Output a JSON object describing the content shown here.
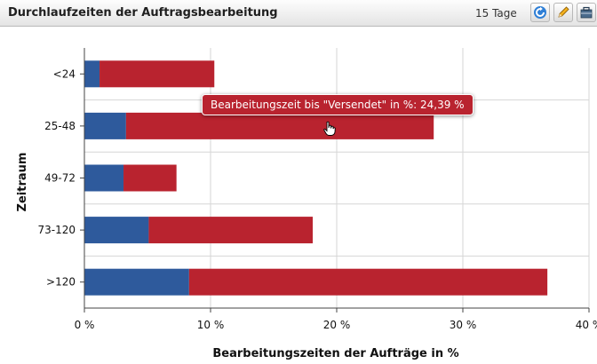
{
  "header": {
    "title": "Durchlaufzeiten der Auftragsbearbeitung",
    "period": "15 Tage",
    "buttons": [
      {
        "name": "refresh-button",
        "icon": "refresh-icon"
      },
      {
        "name": "edit-button",
        "icon": "pencil-icon"
      },
      {
        "name": "options-button",
        "icon": "toolbox-icon"
      }
    ]
  },
  "tooltip": {
    "text": "Bearbeitungszeit bis \"Versendet\" in %: 24,39 %"
  },
  "colors": {
    "series_blue": "#2e5a9c",
    "series_red": "#b9232f",
    "grid": "#d6d6d6",
    "header_text": "#1f1f1f"
  },
  "chart_data": {
    "type": "bar",
    "orientation": "horizontal",
    "stacked": true,
    "categories": [
      "<24",
      "25-48",
      "49-72",
      "73-120",
      ">120"
    ],
    "series": [
      {
        "values": [
          1.2,
          3.3,
          3.1,
          5.1,
          8.3
        ],
        "color": "#2e5a9c"
      },
      {
        "name": "Bearbeitungszeit bis \"Versendet\"",
        "values": [
          9.1,
          24.39,
          4.2,
          13.0,
          28.4
        ],
        "color": "#b9232f"
      }
    ],
    "xlabel": "Bearbeitungszeiten der Aufträge in %",
    "ylabel": "Zeitraum",
    "xlim": [
      0,
      40
    ],
    "xticks": [
      "0 %",
      "10 %",
      "20 %",
      "30 %",
      "40 %"
    ],
    "grid": true
  }
}
